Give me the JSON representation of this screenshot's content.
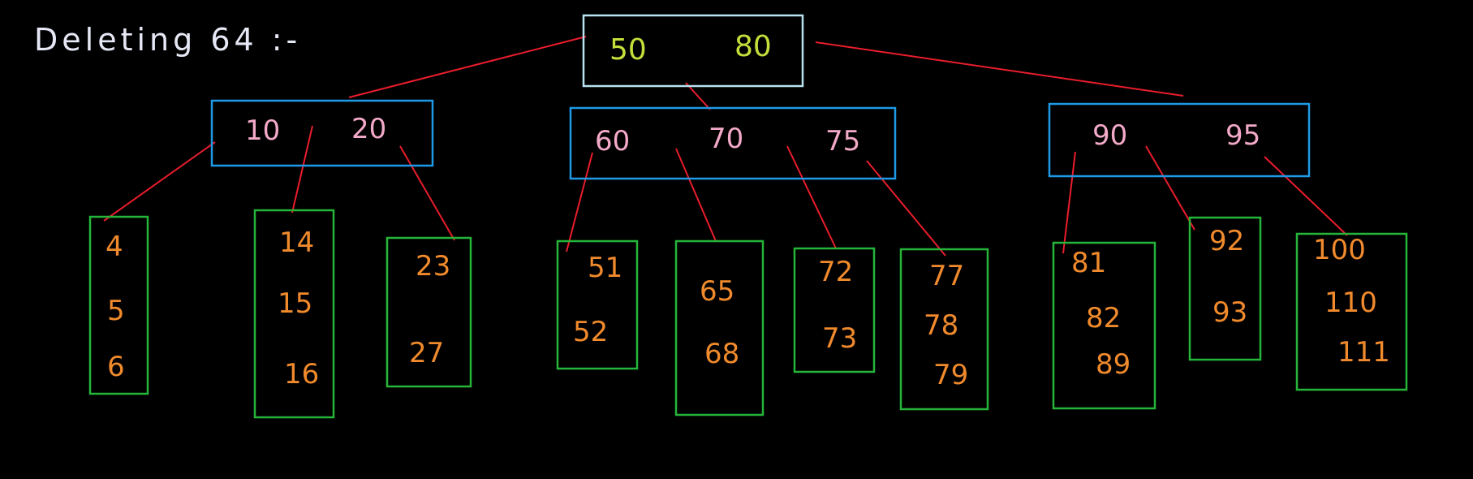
{
  "title": "Deleting  64 :-",
  "colors": {
    "background": "#000000",
    "root_box": "#b8e3f1",
    "internal_box": "#1e9ae6",
    "leaf_box": "#25b53a",
    "edges": "#ea1d2c",
    "root_keys": "#c3df3a",
    "internal_keys": "#f3a9c8",
    "leaf_keys": "#f08a2c",
    "title_text": "#e6e8f5"
  },
  "tree": {
    "root": {
      "keys": [
        "50",
        "80"
      ]
    },
    "internal_nodes": [
      {
        "keys": [
          "10",
          "20"
        ]
      },
      {
        "keys": [
          "60",
          "70",
          "75"
        ]
      },
      {
        "keys": [
          "90",
          "95"
        ]
      }
    ],
    "leaves": [
      {
        "keys": [
          "4",
          "5",
          "6"
        ]
      },
      {
        "keys": [
          "14",
          "15",
          "16"
        ]
      },
      {
        "keys": [
          "23",
          "27"
        ]
      },
      {
        "keys": [
          "51",
          "52"
        ]
      },
      {
        "keys": [
          "65",
          "68"
        ]
      },
      {
        "keys": [
          "72",
          "73"
        ]
      },
      {
        "keys": [
          "77",
          "78",
          "79"
        ]
      },
      {
        "keys": [
          "81",
          "82",
          "89"
        ]
      },
      {
        "keys": [
          "92",
          "93"
        ]
      },
      {
        "keys": [
          "100",
          "110",
          "111"
        ]
      }
    ]
  }
}
